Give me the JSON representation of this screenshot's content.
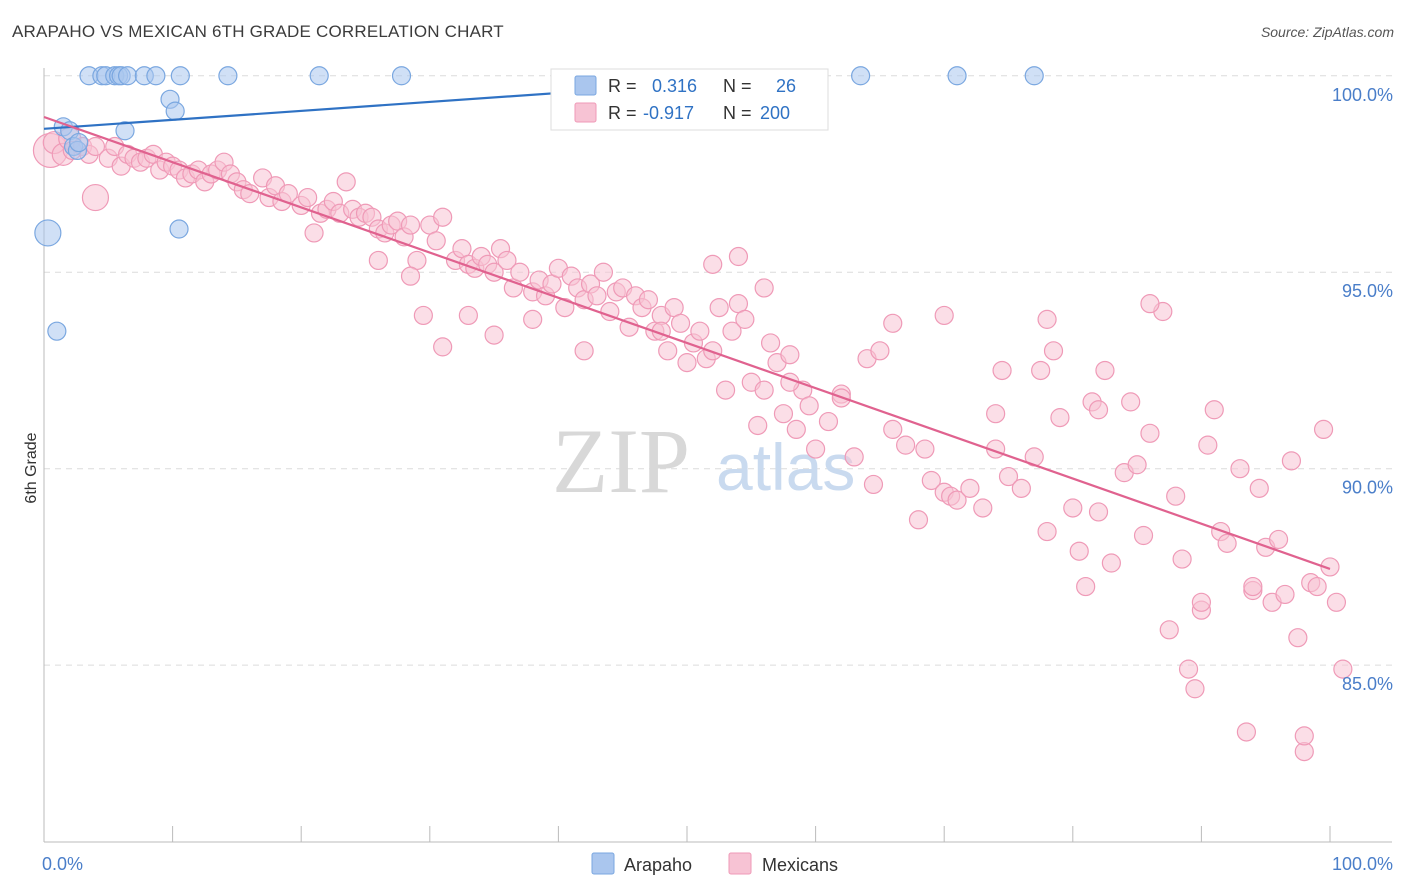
{
  "title": "ARAPAHO VS MEXICAN 6TH GRADE CORRELATION CHART",
  "source": "Source: ZipAtlas.com",
  "watermark": {
    "zip": "ZIP",
    "atlas": "atlas"
  },
  "chart_data": {
    "type": "scatter",
    "title": "ARAPAHO VS MEXICAN 6TH GRADE CORRELATION CHART",
    "xlabel": "",
    "ylabel": "6th Grade",
    "xlim": [
      0,
      100
    ],
    "ylim": [
      80.5,
      100.35
    ],
    "x_tick_labels": [
      "0.0%",
      "100.0%"
    ],
    "y_ticks": [
      85,
      90,
      95,
      100
    ],
    "y_tick_labels": [
      "85.0%",
      "90.0%",
      "95.0%",
      "100.0%"
    ],
    "grid": true,
    "legend_position": "top-center",
    "bottom_legend": [
      "Arapaho",
      "Mexicans"
    ],
    "stats": [
      {
        "series": "Arapaho",
        "r_label": "R =",
        "r_value": "0.316",
        "n_label": "N =",
        "n_value": "26"
      },
      {
        "series": "Mexicans",
        "r_label": "R =",
        "r_value": "-0.917",
        "n_label": "N =",
        "n_value": "200"
      }
    ],
    "series": [
      {
        "name": "Arapaho",
        "color": "#7aa7e0",
        "fill": "#aac6ee",
        "line_color": "#2f72c4",
        "trendline": [
          [
            0,
            98.65
          ],
          [
            57,
            99.95
          ]
        ],
        "points": [
          [
            0.3,
            96.0,
            12
          ],
          [
            1,
            93.5,
            8
          ],
          [
            1.5,
            98.7,
            8
          ],
          [
            2,
            98.6,
            8
          ],
          [
            2.3,
            98.2,
            8
          ],
          [
            2.6,
            98.1,
            8
          ],
          [
            2.7,
            98.3,
            8
          ],
          [
            3.5,
            100.0,
            8
          ],
          [
            4.5,
            100.0,
            8
          ],
          [
            4.8,
            100.0,
            8
          ],
          [
            5.5,
            100.0,
            8
          ],
          [
            5.8,
            100.0,
            8
          ],
          [
            6,
            100.0,
            8
          ],
          [
            6.5,
            100.0,
            8
          ],
          [
            6.3,
            98.6,
            8
          ],
          [
            7.8,
            100.0,
            8
          ],
          [
            8.7,
            100.0,
            8
          ],
          [
            9.8,
            99.4,
            8
          ],
          [
            10.2,
            99.1,
            8
          ],
          [
            10.6,
            100.0,
            8
          ],
          [
            10.5,
            96.1,
            8
          ],
          [
            14.3,
            100.0,
            8
          ],
          [
            21.4,
            100.0,
            8
          ],
          [
            27.8,
            100.0,
            8
          ],
          [
            63.5,
            100.0,
            8
          ],
          [
            71,
            100.0,
            8
          ],
          [
            77,
            100.0,
            8
          ]
        ]
      },
      {
        "name": "Mexicans",
        "color": "#ef9ab7",
        "fill": "#f7c3d4",
        "line_color": "#e0628f",
        "trendline": [
          [
            0,
            98.95
          ],
          [
            100,
            87.45
          ]
        ],
        "points": [
          [
            0.5,
            98.1,
            16
          ],
          [
            0.8,
            98.3,
            10
          ],
          [
            1.5,
            98.0,
            10
          ],
          [
            2,
            98.4,
            10
          ],
          [
            2.2,
            98.1,
            8
          ],
          [
            3,
            98.2,
            8
          ],
          [
            3.5,
            98.0,
            8
          ],
          [
            4,
            98.2,
            8
          ],
          [
            5,
            97.9,
            8
          ],
          [
            5.5,
            98.2,
            8
          ],
          [
            4,
            96.9,
            12
          ],
          [
            6,
            97.7,
            8
          ],
          [
            6.5,
            98.0,
            8
          ],
          [
            7,
            97.9,
            8
          ],
          [
            7.5,
            97.8,
            8
          ],
          [
            8,
            97.9,
            8
          ],
          [
            8.5,
            98.0,
            8
          ],
          [
            9,
            97.6,
            8
          ],
          [
            9.5,
            97.8,
            8
          ],
          [
            10,
            97.7,
            8
          ],
          [
            10.5,
            97.6,
            8
          ],
          [
            11,
            97.4,
            8
          ],
          [
            11.5,
            97.5,
            8
          ],
          [
            12,
            97.6,
            8
          ],
          [
            12.5,
            97.3,
            8
          ],
          [
            13,
            97.5,
            8
          ],
          [
            13.5,
            97.6,
            8
          ],
          [
            14,
            97.8,
            8
          ],
          [
            14.5,
            97.5,
            8
          ],
          [
            15,
            97.3,
            8
          ],
          [
            15.5,
            97.1,
            8
          ],
          [
            16,
            97.0,
            8
          ],
          [
            17,
            97.4,
            8
          ],
          [
            17.5,
            96.9,
            8
          ],
          [
            18,
            97.2,
            8
          ],
          [
            18.5,
            96.8,
            8
          ],
          [
            19,
            97.0,
            8
          ],
          [
            20,
            96.7,
            8
          ],
          [
            20.5,
            96.9,
            8
          ],
          [
            21,
            96.0,
            8
          ],
          [
            21.5,
            96.5,
            8
          ],
          [
            22,
            96.6,
            8
          ],
          [
            22.5,
            96.8,
            8
          ],
          [
            23,
            96.5,
            8
          ],
          [
            23.5,
            97.3,
            8
          ],
          [
            24,
            96.6,
            8
          ],
          [
            24.5,
            96.4,
            8
          ],
          [
            25,
            96.5,
            8
          ],
          [
            25.5,
            96.4,
            8
          ],
          [
            26,
            96.1,
            8
          ],
          [
            26.5,
            96.0,
            8
          ],
          [
            27,
            96.2,
            8
          ],
          [
            27.5,
            96.3,
            8
          ],
          [
            28,
            95.9,
            8
          ],
          [
            28.5,
            96.2,
            8
          ],
          [
            29,
            95.3,
            8
          ],
          [
            30,
            96.2,
            8
          ],
          [
            30.5,
            95.8,
            8
          ],
          [
            31,
            96.4,
            8
          ],
          [
            32,
            95.3,
            8
          ],
          [
            32.5,
            95.6,
            8
          ],
          [
            33,
            95.2,
            8
          ],
          [
            33.5,
            95.1,
            8
          ],
          [
            34,
            95.4,
            8
          ],
          [
            34.5,
            95.2,
            8
          ],
          [
            35,
            95.0,
            8
          ],
          [
            35.5,
            95.6,
            8
          ],
          [
            36,
            95.3,
            8
          ],
          [
            36.5,
            94.6,
            8
          ],
          [
            37,
            95.0,
            8
          ],
          [
            38,
            94.5,
            8
          ],
          [
            38.5,
            94.8,
            8
          ],
          [
            39,
            94.4,
            8
          ],
          [
            39.5,
            94.7,
            8
          ],
          [
            40,
            95.1,
            8
          ],
          [
            40.5,
            94.1,
            8
          ],
          [
            41,
            94.9,
            8
          ],
          [
            41.5,
            94.6,
            8
          ],
          [
            42,
            94.3,
            8
          ],
          [
            42.5,
            94.7,
            8
          ],
          [
            43,
            94.4,
            8
          ],
          [
            43.5,
            95.0,
            8
          ],
          [
            44,
            94.0,
            8
          ],
          [
            44.5,
            94.5,
            8
          ],
          [
            45,
            94.6,
            8
          ],
          [
            45.5,
            93.6,
            8
          ],
          [
            46,
            94.4,
            8
          ],
          [
            46.5,
            94.1,
            8
          ],
          [
            47,
            94.3,
            8
          ],
          [
            47.5,
            93.5,
            8
          ],
          [
            48,
            93.9,
            8
          ],
          [
            48.5,
            93.0,
            8
          ],
          [
            49,
            94.1,
            8
          ],
          [
            49.5,
            93.7,
            8
          ],
          [
            50,
            92.7,
            8
          ],
          [
            50.5,
            93.2,
            8
          ],
          [
            51,
            93.5,
            8
          ],
          [
            51.5,
            92.8,
            8
          ],
          [
            52,
            93.0,
            8
          ],
          [
            52.5,
            94.1,
            8
          ],
          [
            53,
            92.0,
            8
          ],
          [
            53.5,
            93.5,
            8
          ],
          [
            54,
            94.2,
            8
          ],
          [
            54.5,
            93.8,
            8
          ],
          [
            55,
            92.2,
            8
          ],
          [
            55.5,
            91.1,
            8
          ],
          [
            56,
            92.0,
            8
          ],
          [
            56.5,
            93.2,
            8
          ],
          [
            57,
            92.7,
            8
          ],
          [
            57.5,
            91.4,
            8
          ],
          [
            58,
            92.9,
            8
          ],
          [
            58.5,
            91.0,
            8
          ],
          [
            59,
            92.0,
            8
          ],
          [
            59.5,
            91.6,
            8
          ],
          [
            60,
            90.5,
            8
          ],
          [
            61,
            91.2,
            8
          ],
          [
            62,
            91.9,
            8
          ],
          [
            63,
            90.3,
            8
          ],
          [
            64,
            92.8,
            8
          ],
          [
            64.5,
            89.6,
            8
          ],
          [
            65,
            93.0,
            8
          ],
          [
            66,
            91.0,
            8
          ],
          [
            67,
            90.6,
            8
          ],
          [
            68,
            88.7,
            8
          ],
          [
            68.5,
            90.5,
            8
          ],
          [
            69,
            89.7,
            8
          ],
          [
            70,
            89.4,
            8
          ],
          [
            70.5,
            89.3,
            8
          ],
          [
            71,
            89.2,
            8
          ],
          [
            72,
            89.5,
            8
          ],
          [
            73,
            89.0,
            8
          ],
          [
            74,
            90.5,
            8
          ],
          [
            74.5,
            92.5,
            8
          ],
          [
            75,
            89.8,
            8
          ],
          [
            76,
            89.5,
            8
          ],
          [
            77,
            90.3,
            8
          ],
          [
            77.5,
            92.5,
            8
          ],
          [
            78,
            88.4,
            8
          ],
          [
            78.5,
            93.0,
            8
          ],
          [
            79,
            91.3,
            8
          ],
          [
            80,
            89.0,
            8
          ],
          [
            80.5,
            87.9,
            8
          ],
          [
            81,
            87.0,
            8
          ],
          [
            81.5,
            91.7,
            8
          ],
          [
            82,
            88.9,
            8
          ],
          [
            82.5,
            92.5,
            8
          ],
          [
            83,
            87.6,
            8
          ],
          [
            84,
            89.9,
            8
          ],
          [
            84.5,
            91.7,
            8
          ],
          [
            85,
            90.1,
            8
          ],
          [
            85.5,
            88.3,
            8
          ],
          [
            86,
            90.9,
            8
          ],
          [
            87,
            94.0,
            8
          ],
          [
            87.5,
            85.9,
            8
          ],
          [
            88,
            89.3,
            8
          ],
          [
            88.5,
            87.7,
            8
          ],
          [
            89,
            84.9,
            8
          ],
          [
            89.5,
            84.4,
            8
          ],
          [
            90,
            86.4,
            8
          ],
          [
            90.5,
            90.6,
            8
          ],
          [
            91,
            91.5,
            8
          ],
          [
            91.5,
            88.4,
            8
          ],
          [
            92,
            88.1,
            8
          ],
          [
            93,
            90.0,
            8
          ],
          [
            93.5,
            83.3,
            8
          ],
          [
            94,
            86.9,
            8
          ],
          [
            94.5,
            89.5,
            8
          ],
          [
            95,
            88.0,
            8
          ],
          [
            95.5,
            86.6,
            8
          ],
          [
            96,
            88.2,
            8
          ],
          [
            96.5,
            86.8,
            8
          ],
          [
            97,
            90.2,
            8
          ],
          [
            97.5,
            85.7,
            8
          ],
          [
            98,
            82.8,
            8
          ],
          [
            98.5,
            87.1,
            8
          ],
          [
            99,
            87.0,
            8
          ],
          [
            99.5,
            91.0,
            8
          ],
          [
            100,
            87.5,
            8
          ],
          [
            100.5,
            86.6,
            8
          ],
          [
            101,
            84.9,
            8
          ],
          [
            26,
            95.3,
            8
          ],
          [
            28.5,
            94.9,
            8
          ],
          [
            29.5,
            93.9,
            8
          ],
          [
            31,
            93.1,
            8
          ],
          [
            33,
            93.9,
            8
          ],
          [
            35,
            93.4,
            8
          ],
          [
            38,
            93.8,
            8
          ],
          [
            42,
            93.0,
            8
          ],
          [
            48,
            93.5,
            8
          ],
          [
            52,
            95.2,
            8
          ],
          [
            54,
            95.4,
            8
          ],
          [
            56,
            94.6,
            8
          ],
          [
            58,
            92.2,
            8
          ],
          [
            62,
            91.8,
            8
          ],
          [
            66,
            93.7,
            8
          ],
          [
            70,
            93.9,
            8
          ],
          [
            74,
            91.4,
            8
          ],
          [
            78,
            93.8,
            8
          ],
          [
            82,
            91.5,
            8
          ],
          [
            86,
            94.2,
            8
          ],
          [
            90,
            86.6,
            8
          ],
          [
            94,
            87.0,
            8
          ],
          [
            98,
            83.2,
            8
          ]
        ]
      }
    ]
  }
}
